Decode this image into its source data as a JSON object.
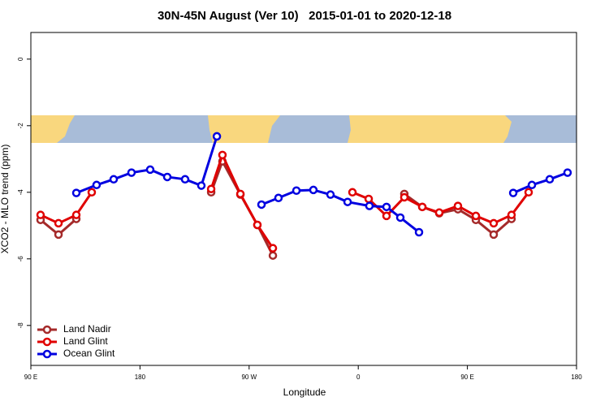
{
  "chart_data": {
    "type": "line",
    "title": "30N-45N August (Ver 10)   2015-01-01 to 2020-12-18",
    "x_label": "Longitude",
    "y_label": "XCO2 - MLO trend (ppm)",
    "xlim": [
      90,
      540
    ],
    "ylim": [
      -9.2,
      0.8
    ],
    "xticks": [
      {
        "value": 90,
        "label": "90 E"
      },
      {
        "value": 180,
        "label": "180"
      },
      {
        "value": 270,
        "label": "90 W"
      },
      {
        "value": 360,
        "label": "0"
      },
      {
        "value": 450,
        "label": "90 E"
      },
      {
        "value": 540,
        "label": "180"
      }
    ],
    "yticks": [
      -8,
      -6,
      -4,
      -2,
      0
    ],
    "legend": "bottom-left",
    "series": [
      {
        "name": "Land Nadir",
        "color": "#a52a2a",
        "x": [
          98,
          112.8,
          127.5,
          null,
          238.7,
          248,
          262.8,
          276.8,
          289.6,
          null,
          398,
          412.8,
          426.8,
          442.2,
          457,
          471.7,
          486.4
        ],
        "values": [
          -4.83,
          -5.27,
          -4.8,
          null,
          -4.0,
          -3.07,
          -4.07,
          -4.98,
          -5.9,
          null,
          -4.05,
          -4.44,
          -4.63,
          -4.51,
          -4.83,
          -5.27,
          -4.8
        ]
      },
      {
        "name": "Land Glint",
        "color": "#e00000",
        "x": [
          98,
          112.8,
          127.5,
          140.2,
          null,
          238.7,
          248,
          262.8,
          276.8,
          289.6,
          null,
          355.2,
          368.6,
          383.3,
          398,
          412.8,
          426.8,
          442.2,
          457,
          471.7,
          486.4,
          500.5
        ],
        "values": [
          -4.68,
          -4.93,
          -4.68,
          -4.0,
          null,
          -3.9,
          -2.88,
          -4.05,
          -4.98,
          -5.68,
          null,
          -4.0,
          -4.2,
          -4.71,
          -4.15,
          -4.44,
          -4.61,
          -4.41,
          -4.71,
          -4.93,
          -4.68,
          -4.0
        ]
      },
      {
        "name": "Ocean Glint",
        "color": "#0000e0",
        "x": [
          127.5,
          144.2,
          158.3,
          173,
          188.4,
          202.5,
          217.2,
          230.6,
          243.4,
          null,
          280.2,
          294.2,
          309,
          323,
          337.1,
          351.2,
          369.2,
          383.3,
          394.7,
          410.1,
          null,
          487.8,
          503.2,
          517.9,
          532.6
        ],
        "values": [
          -4.02,
          -3.78,
          -3.61,
          -3.41,
          -3.32,
          -3.54,
          -3.61,
          -3.8,
          -2.32,
          null,
          -4.37,
          -4.17,
          -3.95,
          -3.93,
          -4.07,
          -4.29,
          -4.41,
          -4.44,
          -4.76,
          -5.2,
          null,
          -4.02,
          -3.78,
          -3.61,
          -3.41
        ]
      }
    ]
  }
}
